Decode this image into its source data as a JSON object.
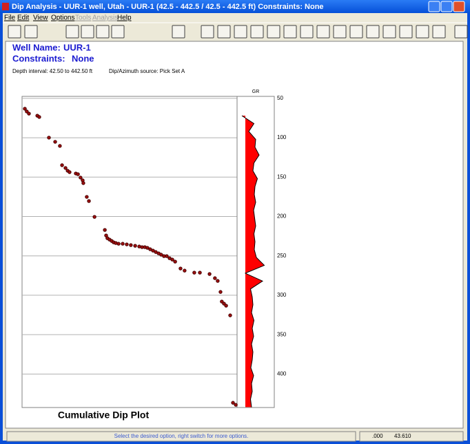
{
  "window": {
    "title": "Dip Analysis - UUR-1 well, Utah - UUR-1 (42.5 - 442.5 / 42.5 - 442.5 ft) Constraints: None"
  },
  "menu": {
    "items": [
      "File",
      "Edit",
      "View",
      "Options",
      "Tools",
      "Analysis",
      "Help"
    ],
    "disabled": [
      false,
      false,
      false,
      false,
      true,
      true,
      false
    ]
  },
  "header": {
    "well_name_label": "Well Name:",
    "well_name": "UUR-1",
    "constraints_label": "Constraints:",
    "constraints": "None",
    "depth_interval": "Depth interval: 42.50 to 442.50 ft",
    "source": "Dip/Azimuth source: Pick Set A"
  },
  "chart_data": {
    "type": "scatter",
    "title": "Cumulative Dip Plot",
    "track_label": "GR",
    "ylim": [
      47.5,
      442.5
    ],
    "yticks": [
      50,
      100,
      150,
      200,
      250,
      300,
      350,
      400
    ],
    "xlim": [
      0,
      100
    ],
    "grid": true,
    "color": "#a01010",
    "x": [
      1.3,
      2.2,
      3.2,
      7.1,
      8.0,
      12.5,
      15.4,
      17.6,
      18.6,
      20.2,
      21.2,
      22.1,
      25.0,
      26.0,
      27.2,
      28.2,
      28.5,
      30.1,
      31.1,
      33.7,
      38.5,
      39.1,
      39.7,
      40.7,
      41.7,
      42.6,
      43.6,
      44.9,
      46.8,
      48.7,
      50.6,
      52.6,
      54.5,
      55.8,
      57.1,
      58.3,
      59.6,
      60.9,
      62.2,
      63.5,
      64.7,
      66.0,
      67.3,
      68.6,
      69.9,
      71.2,
      73.7,
      75.6,
      80.1,
      82.7,
      87.2,
      89.7,
      91.0,
      92.3,
      92.9,
      93.9,
      94.9,
      96.8,
      98.1,
      99.4
    ],
    "values": [
      63.2,
      66.7,
      69.4,
      72.0,
      73.7,
      99.9,
      105.2,
      110.4,
      134.9,
      138.4,
      141.9,
      143.7,
      145.4,
      146.3,
      150.6,
      154.1,
      157.6,
      175.1,
      180.4,
      200.5,
      217.1,
      224.1,
      227.6,
      229.3,
      231.1,
      232.8,
      233.7,
      234.6,
      234.6,
      235.4,
      236.3,
      237.2,
      238.1,
      238.9,
      238.9,
      239.8,
      241.6,
      243.3,
      245.1,
      246.8,
      248.5,
      250.3,
      250.3,
      252.9,
      254.7,
      257.3,
      266.0,
      268.7,
      271.3,
      271.3,
      273.0,
      278.3,
      281.8,
      295.8,
      308.0,
      310.6,
      313.2,
      325.5,
      436.5,
      439.1
    ],
    "gr": {
      "color": "#ff0000",
      "xlim": [
        0,
        100
      ],
      "fill_from": 20,
      "depth": [
        72,
        82,
        92,
        102,
        112,
        122,
        132,
        142,
        152,
        162,
        172,
        182,
        192,
        202,
        212,
        222,
        232,
        242,
        252,
        262,
        272,
        282,
        292,
        302,
        312,
        322,
        332,
        342,
        352,
        362,
        372,
        382,
        392,
        402,
        412,
        422,
        432,
        442
      ],
      "values": [
        10,
        45,
        30,
        50,
        48,
        60,
        45,
        42,
        55,
        48,
        46,
        50,
        44,
        47,
        50,
        45,
        48,
        46,
        52,
        75,
        20,
        70,
        35,
        40,
        42,
        38,
        45,
        40,
        44,
        38,
        42,
        40,
        36,
        44,
        38,
        40,
        35,
        38
      ]
    }
  },
  "status": {
    "message": "Select the desired option, right switch for more options.",
    "x": ".000",
    "y": "43.610"
  }
}
